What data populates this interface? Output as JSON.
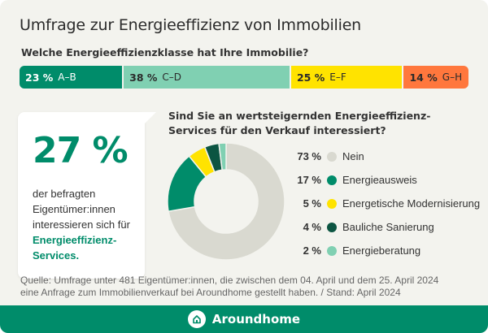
{
  "title": "Umfrage zur Energieeffizienz von Immobilien",
  "class_question": "Welche Energieeffizienzklasse hat Ihre Immobilie?",
  "classes": [
    {
      "pct": "23 %",
      "label": "A–B",
      "value": 23,
      "color": "#008c6a",
      "text_color": "#ffffff"
    },
    {
      "pct": "38 %",
      "label": "C–D",
      "value": 38,
      "color": "#80d0b2",
      "text_color": "#2b2b2b"
    },
    {
      "pct": "25 %",
      "label": "E–F",
      "value": 25,
      "color": "#ffe300",
      "text_color": "#2b2b2b"
    },
    {
      "pct": "14 %",
      "label": "G–H",
      "value": 14,
      "color": "#ff773d",
      "text_color": "#2b2b2b"
    }
  ],
  "callout": {
    "big": "27 %",
    "text": "der befragten Eigentümer:innen interessieren sich für",
    "highlight": "Energieeffizienz-Services."
  },
  "chart_data": {
    "type": "pie",
    "title": "Sind Sie an wertsteigernden Energieeffizienz-Services für den Verkauf interessiert?",
    "donut": true,
    "categories": [
      "Nein",
      "Energieausweis",
      "Energetische Modernisierung",
      "Bauliche Sanierung",
      "Energieberatung"
    ],
    "values": [
      73,
      17,
      5,
      4,
      2
    ],
    "labels": [
      "73 %",
      "17 %",
      "5 %",
      "4 %",
      "2 %"
    ],
    "colors": [
      "#d9d9d0",
      "#008c6a",
      "#ffe300",
      "#0c5542",
      "#80d0b2"
    ],
    "legend": "right"
  },
  "source": {
    "line1": "Quelle: Umfrage unter 481 Eigentümer:innen, die zwischen dem 04. April und dem 25. April 2024",
    "line2": "eine Anfrage zum Immobilienverkauf bei Aroundhome gestellt haben.  /  Stand: April 2024"
  },
  "footer": {
    "brand": "Aroundhome",
    "color": "#008c6a"
  }
}
